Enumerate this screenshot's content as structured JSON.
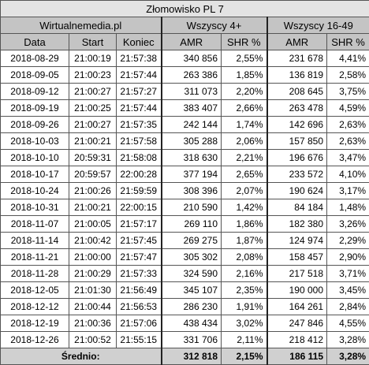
{
  "title": "Złomowisko PL 7",
  "group_headers": [
    "Wirtualnemedia.pl",
    "Wszyscy 4+",
    "Wszyscy 16-49"
  ],
  "column_headers": [
    "Data",
    "Start",
    "Koniec",
    "AMR",
    "SHR %",
    "AMR",
    "SHR %"
  ],
  "rows": [
    [
      "2018-08-29",
      "21:00:19",
      "21:57:38",
      "340 856",
      "2,55%",
      "231 678",
      "4,41%"
    ],
    [
      "2018-09-05",
      "21:00:23",
      "21:57:44",
      "263 386",
      "1,85%",
      "136 819",
      "2,58%"
    ],
    [
      "2018-09-12",
      "21:00:27",
      "21:57:27",
      "311 073",
      "2,20%",
      "208 645",
      "3,75%"
    ],
    [
      "2018-09-19",
      "21:00:25",
      "21:57:44",
      "383 407",
      "2,66%",
      "263 478",
      "4,59%"
    ],
    [
      "2018-09-26",
      "21:00:27",
      "21:57:35",
      "242 144",
      "1,74%",
      "142 696",
      "2,63%"
    ],
    [
      "2018-10-03",
      "21:00:21",
      "21:57:58",
      "305 288",
      "2,06%",
      "157 850",
      "2,63%"
    ],
    [
      "2018-10-10",
      "20:59:31",
      "21:58:08",
      "318 630",
      "2,21%",
      "196 676",
      "3,47%"
    ],
    [
      "2018-10-17",
      "20:59:57",
      "22:00:28",
      "377 194",
      "2,65%",
      "233 572",
      "4,10%"
    ],
    [
      "2018-10-24",
      "21:00:26",
      "21:59:59",
      "308 396",
      "2,07%",
      "190 624",
      "3,17%"
    ],
    [
      "2018-10-31",
      "21:00:21",
      "22:00:15",
      "210 590",
      "1,42%",
      "84 184",
      "1,48%"
    ],
    [
      "2018-11-07",
      "21:00:05",
      "21:57:17",
      "269 110",
      "1,86%",
      "182 380",
      "3,26%"
    ],
    [
      "2018-11-14",
      "21:00:42",
      "21:57:45",
      "269 275",
      "1,87%",
      "124 974",
      "2,29%"
    ],
    [
      "2018-11-21",
      "21:00:00",
      "21:57:47",
      "305 302",
      "2,08%",
      "158 457",
      "2,90%"
    ],
    [
      "2018-11-28",
      "21:00:29",
      "21:57:33",
      "324 590",
      "2,16%",
      "217 518",
      "3,71%"
    ],
    [
      "2018-12-05",
      "21:01:30",
      "21:56:49",
      "345 107",
      "2,35%",
      "190 000",
      "3,45%"
    ],
    [
      "2018-12-12",
      "21:00:44",
      "21:56:53",
      "286 230",
      "1,91%",
      "164 261",
      "2,84%"
    ],
    [
      "2018-12-19",
      "21:00:36",
      "21:57:06",
      "438 434",
      "3,02%",
      "247 846",
      "4,55%"
    ],
    [
      "2018-12-26",
      "21:00:52",
      "21:55:15",
      "331 706",
      "2,11%",
      "218 412",
      "3,28%"
    ]
  ],
  "footer": {
    "label": "Średnio:",
    "values": [
      "312 818",
      "2,15%",
      "186 115",
      "3,28%"
    ]
  }
}
